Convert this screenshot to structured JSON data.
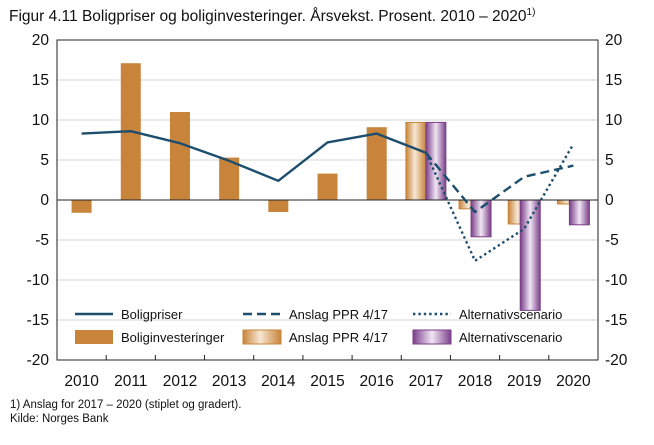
{
  "chart_data": {
    "type": "bar",
    "title": "Figur 4.11 Boligpriser og boliginvesteringer. Årsvekst. Prosent. 2010 – 2020",
    "title_footnote_marker": "1)",
    "xlabel": "",
    "ylabel": "",
    "categories": [
      "2010",
      "2011",
      "2012",
      "2013",
      "2014",
      "2015",
      "2016",
      "2017",
      "2018",
      "2019",
      "2020"
    ],
    "ylim": [
      -20,
      20
    ],
    "yticks": [
      20,
      15,
      10,
      5,
      0,
      -5,
      -10,
      -15,
      -20
    ],
    "grid": true,
    "legend_position": "bottom-inside",
    "series": [
      {
        "name": "Boliginvesteringer",
        "kind": "bar",
        "color": "#c8843a",
        "points": [
          {
            "x": "2010",
            "y": -1.6
          },
          {
            "x": "2011",
            "y": 17.1
          },
          {
            "x": "2012",
            "y": 11.0
          },
          {
            "x": "2013",
            "y": 5.3
          },
          {
            "x": "2014",
            "y": -1.5
          },
          {
            "x": "2015",
            "y": 3.3
          },
          {
            "x": "2016",
            "y": 9.1
          },
          {
            "x": "2017",
            "y": 9.7
          }
        ]
      },
      {
        "name": "Anslag PPR 4/17",
        "kind": "bar-gradient",
        "color": "#c8843a",
        "points": [
          {
            "x": "2017",
            "y": 9.7
          },
          {
            "x": "2018",
            "y": -1.1
          },
          {
            "x": "2019",
            "y": -3.0
          },
          {
            "x": "2020",
            "y": -0.5
          }
        ]
      },
      {
        "name": "Alternativscenario",
        "kind": "bar-gradient",
        "color": "#7b3f8a",
        "points": [
          {
            "x": "2017",
            "y": 9.7
          },
          {
            "x": "2018",
            "y": -4.6
          },
          {
            "x": "2019",
            "y": -13.8
          },
          {
            "x": "2020",
            "y": -3.1
          }
        ]
      },
      {
        "name": "Boligpriser",
        "kind": "line",
        "style": "solid",
        "color": "#1d4e6e",
        "points": [
          {
            "x": "2010",
            "y": 8.3
          },
          {
            "x": "2011",
            "y": 8.6
          },
          {
            "x": "2012",
            "y": 7.1
          },
          {
            "x": "2013",
            "y": 4.9
          },
          {
            "x": "2014",
            "y": 2.4
          },
          {
            "x": "2015",
            "y": 7.2
          },
          {
            "x": "2016",
            "y": 8.3
          },
          {
            "x": "2017",
            "y": 5.9
          }
        ]
      },
      {
        "name": "Anslag PPR 4/17",
        "kind": "line",
        "style": "dashed",
        "color": "#1d4e6e",
        "points": [
          {
            "x": "2017",
            "y": 5.9
          },
          {
            "x": "2018",
            "y": -1.5
          },
          {
            "x": "2019",
            "y": 2.9
          },
          {
            "x": "2020",
            "y": 4.3
          }
        ]
      },
      {
        "name": "Alternativscenario",
        "kind": "line",
        "style": "dotted",
        "color": "#1d4e6e",
        "points": [
          {
            "x": "2017",
            "y": 5.9
          },
          {
            "x": "2018",
            "y": -7.6
          },
          {
            "x": "2019",
            "y": -3.6
          },
          {
            "x": "2020",
            "y": 7.0
          }
        ]
      }
    ],
    "footnotes": [
      "1) Anslag for 2017 – 2020 (stiplet og gradert).",
      "Kilde: Norges Bank"
    ]
  },
  "legend": {
    "row1": [
      "Boligpriser",
      "Anslag PPR 4/17",
      "Alternativscenario"
    ],
    "row2": [
      "Boliginvesteringer",
      "Anslag PPR 4/17",
      "Alternativscenario"
    ]
  },
  "colors": {
    "bar_brown": "#c8843a",
    "bar_purple": "#7b3f8a",
    "line_blue": "#1d4e6e",
    "grid": "#d4d4d4"
  }
}
